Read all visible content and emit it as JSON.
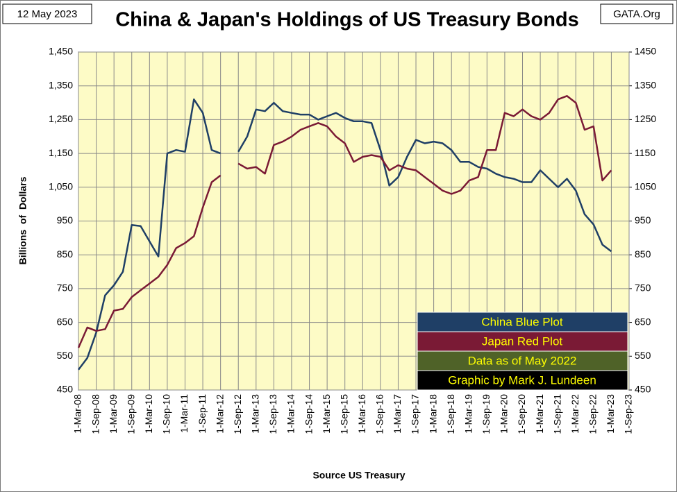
{
  "chart_data": {
    "type": "line",
    "date_label": "12 May 2023",
    "title": "China & Japan's Holdings of US Treasury Bonds",
    "source_label": "GATA.Org",
    "ylabel": "Billions  of  Dollars",
    "xlabel": "Source US Treasury",
    "annotations": [
      "Data as of May 2022",
      "Graphic by Mark J. Lundeen"
    ],
    "categories": [
      "1-Mar-08",
      null,
      "1-Sep-08",
      null,
      "1-Mar-09",
      null,
      "1-Sep-09",
      null,
      "1-Mar-10",
      null,
      "1-Sep-10",
      null,
      "1-Mar-11",
      null,
      "1-Sep-11",
      null,
      "1-Mar-12",
      null,
      "1-Sep-12",
      null,
      "1-Mar-13",
      null,
      "1-Sep-13",
      null,
      "1-Mar-14",
      null,
      "1-Sep-14",
      null,
      "1-Mar-15",
      null,
      "1-Sep-15",
      null,
      "1-Mar-16",
      null,
      "1-Sep-16",
      null,
      "1-Mar-17",
      null,
      "1-Sep-17",
      null,
      "1-Mar-18",
      null,
      "1-Sep-18",
      null,
      "1-Mar-19",
      null,
      "1-Sep-19",
      null,
      "1-Mar-20",
      null,
      "1-Sep-20",
      null,
      "1-Mar-21",
      null,
      "1-Sep-21",
      null,
      "1-Mar-22",
      null,
      "1-Sep-22",
      null,
      "1-Mar-23",
      null,
      "1-Sep-23"
    ],
    "series": [
      {
        "name": "China Blue Plot",
        "color": "#1f3f66",
        "values": [
          510,
          545,
          620,
          730,
          760,
          800,
          938,
          935,
          890,
          845,
          1150,
          1160,
          1155,
          1310,
          1270,
          1160,
          1150,
          null,
          1155,
          1200,
          1280,
          1275,
          1300,
          1275,
          1270,
          1265,
          1265,
          1250,
          1260,
          1270,
          1255,
          1245,
          1245,
          1240,
          1160,
          1055,
          1080,
          1140,
          1190,
          1180,
          1185,
          1180,
          1160,
          1125,
          1125,
          1110,
          1105,
          1090,
          1080,
          1075,
          1065,
          1065,
          1100,
          1075,
          1050,
          1075,
          1040,
          970,
          940,
          880,
          860,
          null,
          null
        ]
      },
      {
        "name": "Japan Red Plot",
        "color": "#7a1a35",
        "values": [
          575,
          635,
          625,
          630,
          685,
          690,
          725,
          745,
          765,
          785,
          820,
          870,
          885,
          905,
          990,
          1065,
          1085,
          null,
          1120,
          1105,
          1110,
          1090,
          1175,
          1185,
          1200,
          1220,
          1230,
          1240,
          1230,
          1200,
          1180,
          1125,
          1140,
          1145,
          1140,
          1100,
          1115,
          1105,
          1100,
          1080,
          1060,
          1040,
          1030,
          1040,
          1070,
          1080,
          1160,
          1160,
          1270,
          1260,
          1280,
          1260,
          1250,
          1270,
          1310,
          1320,
          1300,
          1220,
          1230,
          1070,
          1100,
          null,
          null
        ]
      }
    ],
    "ylim": [
      450,
      1450
    ],
    "yticks": [
      {
        "value": 450,
        "label": "450"
      },
      {
        "value": 550,
        "label": "550"
      },
      {
        "value": 650,
        "label": "650"
      },
      {
        "value": 750,
        "label": "750"
      },
      {
        "value": 850,
        "label": "850"
      },
      {
        "value": 950,
        "label": "950"
      },
      {
        "value": 1050,
        "label": "1,050"
      },
      {
        "value": 1150,
        "label": "1,150"
      },
      {
        "value": 1250,
        "label": "1,250"
      },
      {
        "value": 1350,
        "label": "1,350"
      },
      {
        "value": 1450,
        "label": "1,450"
      }
    ],
    "y2lim": [
      450,
      1450
    ],
    "y2ticks": [
      450,
      550,
      650,
      750,
      850,
      950,
      1050,
      1150,
      1250,
      1350,
      1450
    ],
    "grid": true
  }
}
